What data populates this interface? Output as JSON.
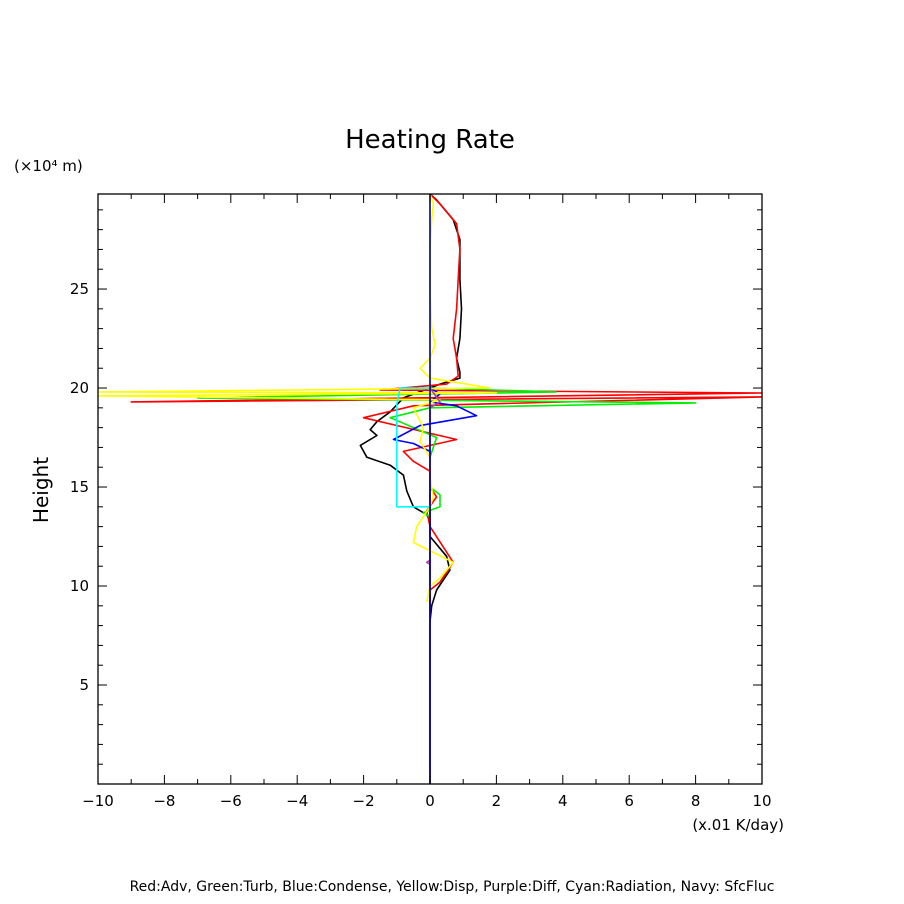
{
  "chart_data": {
    "type": "line",
    "title": "Heating Rate",
    "ylabel": "Height",
    "y_unit_label": "(×10⁴ m)",
    "x_unit_label": "(x.01 K/day)",
    "legend_text": "Red:Adv, Green:Turb, Blue:Condense, Yellow:Disp, Purple:Diff, Cyan:Radiation, Navy: SfcFluc",
    "xlim": [
      -10,
      10
    ],
    "ylim": [
      0,
      29.8
    ],
    "xticks": [
      -10,
      -8,
      -6,
      -4,
      -2,
      0,
      2,
      4,
      6,
      8,
      10
    ],
    "xtick_labels": [
      "−10",
      "−8",
      "−6",
      "−4",
      "−2",
      "0",
      "2",
      "4",
      "6",
      "8",
      "10"
    ],
    "yticks": [
      5,
      10,
      15,
      20,
      25
    ],
    "ytick_labels": [
      "5",
      "10",
      "15",
      "20",
      "25"
    ],
    "grid": false,
    "legend_placement": "bottom",
    "series": [
      {
        "color": "#000000",
        "points": [
          [
            0,
            29.8
          ],
          [
            0.2,
            29.5
          ],
          [
            0.7,
            28.5
          ],
          [
            0.9,
            27.5
          ],
          [
            0.9,
            25.5
          ],
          [
            0.95,
            24
          ],
          [
            0.9,
            22.5
          ],
          [
            0.8,
            21.5
          ],
          [
            0.9,
            20.8
          ],
          [
            0.9,
            20.5
          ],
          [
            0.3,
            20.2
          ],
          [
            0,
            20
          ],
          [
            -0.8,
            19.5
          ],
          [
            -1.2,
            18.8
          ],
          [
            -1.6,
            18.3
          ],
          [
            -1.8,
            17.9
          ],
          [
            -1.6,
            17.6
          ],
          [
            -2.1,
            17.1
          ],
          [
            -1.9,
            16.5
          ],
          [
            -1.2,
            16.1
          ],
          [
            -0.8,
            15.6
          ],
          [
            -0.7,
            14.8
          ],
          [
            -0.5,
            14
          ],
          [
            -0.1,
            13.6
          ],
          [
            0,
            13.3
          ],
          [
            0,
            12.5
          ],
          [
            0.5,
            11.5
          ],
          [
            0.6,
            10.8
          ],
          [
            0.2,
            9.8
          ],
          [
            0.05,
            9
          ],
          [
            0,
            8.2
          ]
        ]
      },
      {
        "color": "#ff0000",
        "points": [
          [
            0,
            29.8
          ],
          [
            0.3,
            29.3
          ],
          [
            0.8,
            28.3
          ],
          [
            0.9,
            27
          ],
          [
            0.85,
            25.5
          ],
          [
            0.8,
            24
          ],
          [
            0.7,
            22.5
          ],
          [
            0.8,
            21.5
          ],
          [
            0.85,
            20.6
          ],
          [
            0.5,
            20.2
          ],
          [
            -1.5,
            19.9
          ],
          [
            10,
            19.75
          ],
          [
            -9,
            19.3
          ],
          [
            10,
            19.55
          ],
          [
            -0.5,
            19.1
          ],
          [
            -2,
            18.5
          ],
          [
            0.8,
            17.4
          ],
          [
            -0.8,
            16.8
          ],
          [
            -0.5,
            16.3
          ],
          [
            0,
            15.8
          ],
          [
            0,
            15
          ],
          [
            0.2,
            14.5
          ],
          [
            -0.1,
            13.8
          ],
          [
            0,
            13
          ],
          [
            0.7,
            11.2
          ],
          [
            0.3,
            10.2
          ],
          [
            0,
            9.8
          ],
          [
            0,
            8.5
          ]
        ]
      },
      {
        "color": "#00ee00",
        "points": [
          [
            0,
            20
          ],
          [
            3.8,
            19.8
          ],
          [
            -7,
            19.5
          ],
          [
            8,
            19.25
          ],
          [
            0,
            19
          ],
          [
            -1.2,
            18.5
          ],
          [
            0.2,
            17.5
          ],
          [
            0,
            16.5
          ],
          [
            0,
            15
          ],
          [
            0.3,
            14.6
          ],
          [
            0.3,
            14
          ],
          [
            -0.2,
            13.7
          ],
          [
            0,
            13.5
          ]
        ]
      },
      {
        "color": "#0000ff",
        "points": [
          [
            0,
            20
          ],
          [
            0.3,
            19.7
          ],
          [
            0,
            19.3
          ],
          [
            0.8,
            19.1
          ],
          [
            1.4,
            18.6
          ],
          [
            -0.3,
            18.1
          ],
          [
            -1.1,
            17.4
          ],
          [
            -0.5,
            17.2
          ],
          [
            0,
            16.8
          ],
          [
            0,
            0
          ]
        ]
      },
      {
        "color": "#ffff00",
        "points": [
          [
            0,
            29.8
          ],
          [
            0.1,
            29.3
          ],
          [
            0.05,
            28.5
          ],
          [
            0,
            27
          ],
          [
            0,
            25
          ],
          [
            0.05,
            23
          ],
          [
            0.15,
            22.2
          ],
          [
            0,
            21.5
          ],
          [
            -0.3,
            21
          ],
          [
            0,
            20.5
          ],
          [
            1.8,
            20
          ],
          [
            -10,
            19.8
          ],
          [
            2,
            19.75
          ],
          [
            -10,
            19.6
          ],
          [
            0.3,
            19.4
          ],
          [
            -0.5,
            19
          ],
          [
            -0.2,
            18
          ],
          [
            -0.3,
            17.3
          ],
          [
            0,
            16.5
          ],
          [
            0,
            15.5
          ],
          [
            0.1,
            14.5
          ],
          [
            0,
            14
          ],
          [
            -0.4,
            13
          ],
          [
            -0.5,
            12.2
          ],
          [
            0.7,
            11.2
          ],
          [
            0.3,
            10.4
          ],
          [
            0,
            10
          ],
          [
            -0.1,
            9.2
          ]
        ]
      },
      {
        "color": "#aa44aa",
        "points": [
          [
            0,
            20
          ],
          [
            0.3,
            19.3
          ],
          [
            0,
            19
          ],
          [
            0,
            11.3
          ],
          [
            -0.1,
            11.2
          ],
          [
            0,
            11.1
          ],
          [
            0,
            0
          ]
        ]
      },
      {
        "color": "#00ffff",
        "points": [
          [
            0,
            20
          ],
          [
            -0.9,
            20
          ],
          [
            -1,
            19.2
          ],
          [
            -1,
            14
          ],
          [
            -0.5,
            14
          ],
          [
            0,
            14
          ]
        ]
      },
      {
        "color": "#000080",
        "points": [
          [
            0,
            29.8
          ],
          [
            0,
            0
          ]
        ]
      }
    ]
  }
}
